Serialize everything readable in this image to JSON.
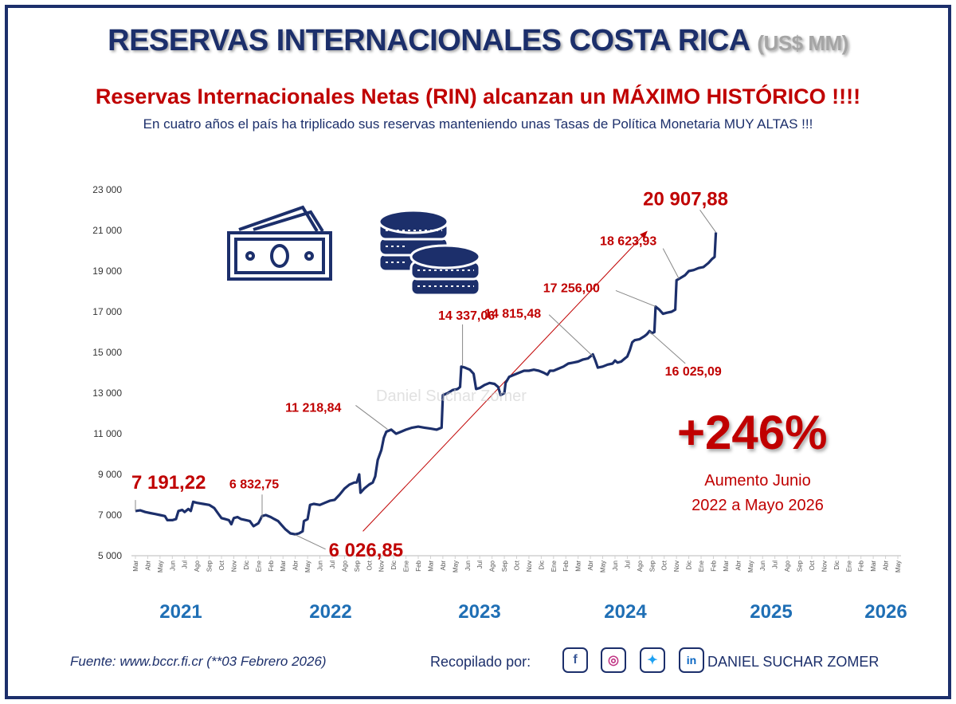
{
  "title": "RESERVAS INTERNACIONALES COSTA RICA",
  "title_unit": "(US$ MM)",
  "subtitle": "Reservas Internacionales Netas (RIN) alcanzan un MÁXIMO HISTÓRICO !!!!",
  "tagline": "En cuatro años el país ha triplicado sus reservas manteniendo unas Tasas de Política Monetaria MUY ALTAS !!!",
  "watermark": "Daniel Suchar Zomer",
  "highlight": {
    "value": "+246%",
    "caption_line1": "Aumento Junio",
    "caption_line2": "2022 a Mayo 2026"
  },
  "footer": {
    "source": "Fuente: www.bccr.fi.cr  (**03 Febrero 2026)",
    "credit_label": "Recopilado por:",
    "author": "DANIEL SUCHAR ZOMER",
    "icons": [
      "facebook-icon",
      "instagram-icon",
      "twitter-icon",
      "linkedin-icon"
    ]
  },
  "colors": {
    "line": "#1c2f6b",
    "accent": "#c00000",
    "year": "#1f6fb5",
    "axis": "#d0d0d0"
  },
  "chart_data": {
    "type": "line",
    "ylim": [
      5000,
      23000
    ],
    "yticks": [
      5000,
      7000,
      9000,
      11000,
      13000,
      15000,
      17000,
      19000,
      21000,
      23000
    ],
    "ytick_labels": [
      "5 000",
      "7 000",
      "9 000",
      "11 000",
      "13 000",
      "15 000",
      "17 000",
      "19 000",
      "21 000",
      "23 000"
    ],
    "month_labels": [
      "Mar",
      "Abr",
      "May",
      "Jun",
      "Jul",
      "Ago",
      "Sep",
      "Oct",
      "Nov",
      "Dic",
      "Ene",
      "Feb",
      "Mar",
      "Abr",
      "May",
      "Jun",
      "Jul",
      "Ago",
      "Sep",
      "Oct",
      "Nov",
      "Dic",
      "Ene",
      "Feb",
      "Mar",
      "Abr",
      "May",
      "Jun",
      "Jul",
      "Ago",
      "Sep",
      "Oct",
      "Nov",
      "Dic",
      "Ene",
      "Feb",
      "Mar",
      "Abr",
      "May",
      "Jun",
      "Jul",
      "Ago",
      "Sep",
      "Oct",
      "Nov",
      "Dic",
      "Ene",
      "Feb",
      "Mar",
      "Abr",
      "May",
      "Jun",
      "Jul",
      "Ago",
      "Sep",
      "Oct",
      "Nov",
      "Dic",
      "Ene",
      "Feb",
      "Mar",
      "Abr",
      "May"
    ],
    "year_labels": [
      {
        "label": "2021",
        "month_index": 2
      },
      {
        "label": "2022",
        "month_index": 8
      },
      {
        "label": "2023",
        "month_index": 14
      },
      {
        "label": "2024",
        "month_index": 20
      },
      {
        "label": "2025",
        "month_index": 26
      },
      {
        "label": "2026",
        "month_index": 32
      }
    ],
    "series": [
      {
        "points": [
          [
            0,
            7200
          ],
          [
            0.4,
            7230
          ],
          [
            0.8,
            7150
          ],
          [
            1.2,
            7100
          ],
          [
            1.6,
            7050
          ],
          [
            2,
            7000
          ],
          [
            2.4,
            6950
          ],
          [
            2.6,
            6750
          ],
          [
            3,
            6750
          ],
          [
            3.3,
            6800
          ],
          [
            3.5,
            7200
          ],
          [
            3.8,
            7250
          ],
          [
            4,
            7150
          ],
          [
            4.3,
            7300
          ],
          [
            4.5,
            7200
          ],
          [
            4.7,
            7650
          ],
          [
            5,
            7600
          ],
          [
            5.5,
            7550
          ],
          [
            6,
            7500
          ],
          [
            6.4,
            7350
          ],
          [
            6.7,
            7100
          ],
          [
            7,
            6850
          ],
          [
            7.3,
            6800
          ],
          [
            7.6,
            6750
          ],
          [
            7.8,
            6550
          ],
          [
            8,
            6850
          ],
          [
            8.3,
            6900
          ],
          [
            8.6,
            6800
          ],
          [
            9,
            6750
          ],
          [
            9.3,
            6700
          ],
          [
            9.6,
            6450
          ],
          [
            10,
            6600
          ],
          [
            10.3,
            6950
          ],
          [
            10.6,
            7000
          ],
          [
            11,
            6900
          ],
          [
            11.3,
            6800
          ],
          [
            11.6,
            6700
          ],
          [
            11.9,
            6500
          ],
          [
            12.2,
            6300
          ],
          [
            12.6,
            6100
          ],
          [
            13,
            6050
          ],
          [
            13.3,
            6100
          ],
          [
            13.6,
            6200
          ],
          [
            13.7,
            6700
          ],
          [
            14,
            6800
          ],
          [
            14.2,
            7500
          ],
          [
            14.5,
            7550
          ],
          [
            15,
            7500
          ],
          [
            15.4,
            7600
          ],
          [
            15.8,
            7700
          ],
          [
            16.2,
            7750
          ],
          [
            16.6,
            8000
          ],
          [
            17,
            8300
          ],
          [
            17.4,
            8500
          ],
          [
            17.8,
            8600
          ],
          [
            18,
            8600
          ],
          [
            18.2,
            9000
          ],
          [
            18.3,
            8100
          ],
          [
            18.6,
            8300
          ],
          [
            19,
            8500
          ],
          [
            19.3,
            8600
          ],
          [
            19.5,
            8900
          ],
          [
            19.7,
            9700
          ],
          [
            20,
            10200
          ],
          [
            20.2,
            10800
          ],
          [
            20.4,
            11100
          ],
          [
            20.8,
            11200
          ],
          [
            21.2,
            11000
          ],
          [
            21.6,
            11100
          ],
          [
            22,
            11200
          ],
          [
            22.5,
            11300
          ],
          [
            23,
            11350
          ],
          [
            23.5,
            11300
          ],
          [
            24,
            11250
          ],
          [
            24.5,
            11200
          ],
          [
            24.9,
            11300
          ],
          [
            25,
            12900
          ],
          [
            25.4,
            13000
          ],
          [
            25.8,
            13150
          ],
          [
            26.2,
            13200
          ],
          [
            26.4,
            13300
          ],
          [
            26.5,
            14300
          ],
          [
            26.8,
            14250
          ],
          [
            27.2,
            14150
          ],
          [
            27.5,
            13950
          ],
          [
            27.7,
            13200
          ],
          [
            28,
            13250
          ],
          [
            28.4,
            13400
          ],
          [
            28.8,
            13500
          ],
          [
            29.2,
            13450
          ],
          [
            29.5,
            13300
          ],
          [
            29.7,
            12900
          ],
          [
            30,
            13000
          ],
          [
            30.1,
            13500
          ],
          [
            30.4,
            13800
          ],
          [
            30.8,
            13900
          ],
          [
            31.2,
            14000
          ],
          [
            31.6,
            14100
          ],
          [
            32,
            14100
          ],
          [
            32.4,
            14150
          ],
          [
            32.8,
            14100
          ],
          [
            33.2,
            14000
          ],
          [
            33.5,
            13900
          ],
          [
            33.7,
            14100
          ],
          [
            34,
            14100
          ],
          [
            34.4,
            14200
          ],
          [
            34.8,
            14300
          ],
          [
            35.2,
            14450
          ],
          [
            35.6,
            14500
          ],
          [
            36,
            14550
          ],
          [
            36.4,
            14650
          ],
          [
            36.8,
            14700
          ],
          [
            37.2,
            14900
          ],
          [
            37.4,
            14600
          ],
          [
            37.6,
            14250
          ],
          [
            38,
            14300
          ],
          [
            38.4,
            14400
          ],
          [
            38.8,
            14450
          ],
          [
            39,
            14600
          ],
          [
            39.2,
            14500
          ],
          [
            39.5,
            14550
          ],
          [
            39.8,
            14700
          ],
          [
            40,
            14800
          ],
          [
            40.2,
            15100
          ],
          [
            40.4,
            15500
          ],
          [
            40.6,
            15600
          ],
          [
            41,
            15650
          ],
          [
            41.4,
            15800
          ],
          [
            41.6,
            15900
          ],
          [
            41.8,
            16050
          ],
          [
            42,
            15950
          ],
          [
            42.2,
            16000
          ],
          [
            42.3,
            17250
          ],
          [
            42.6,
            17100
          ],
          [
            42.9,
            16900
          ],
          [
            43.2,
            16950
          ],
          [
            43.6,
            17000
          ],
          [
            43.9,
            17100
          ],
          [
            44,
            18550
          ],
          [
            44.3,
            18650
          ],
          [
            44.7,
            18800
          ],
          [
            45,
            19000
          ],
          [
            45.4,
            19050
          ],
          [
            45.8,
            19150
          ],
          [
            46.2,
            19200
          ],
          [
            46.6,
            19400
          ],
          [
            46.9,
            19600
          ],
          [
            47.1,
            19700
          ],
          [
            47.2,
            20900
          ]
        ]
      }
    ],
    "annotations": [
      {
        "text": "7 191,22",
        "x": 0,
        "y": 7191.22,
        "size": "large"
      },
      {
        "text": "6 832,75",
        "x": 10.3,
        "y": 6832.75,
        "size": "small"
      },
      {
        "text": "6 026,85",
        "x": 13,
        "y": 6026.85,
        "size": "large"
      },
      {
        "text": "11 218,84",
        "x": 20.5,
        "y": 11218.84,
        "size": "small"
      },
      {
        "text": "14 337,06",
        "x": 26.6,
        "y": 14337.06,
        "size": "small"
      },
      {
        "text": "14 815,48",
        "x": 37.2,
        "y": 14815.48,
        "size": "small"
      },
      {
        "text": "16 025,09",
        "x": 41.8,
        "y": 16025.09,
        "size": "small"
      },
      {
        "text": "17 256,00",
        "x": 42.3,
        "y": 17256.0,
        "size": "small"
      },
      {
        "text": "18 623,93",
        "x": 44.2,
        "y": 18623.93,
        "size": "small"
      },
      {
        "text": "20 907,88",
        "x": 47.2,
        "y": 20907.88,
        "size": "large"
      }
    ],
    "trend_arrow": {
      "from": [
        18.5,
        6200
      ],
      "to": [
        41.6,
        20950
      ]
    }
  }
}
